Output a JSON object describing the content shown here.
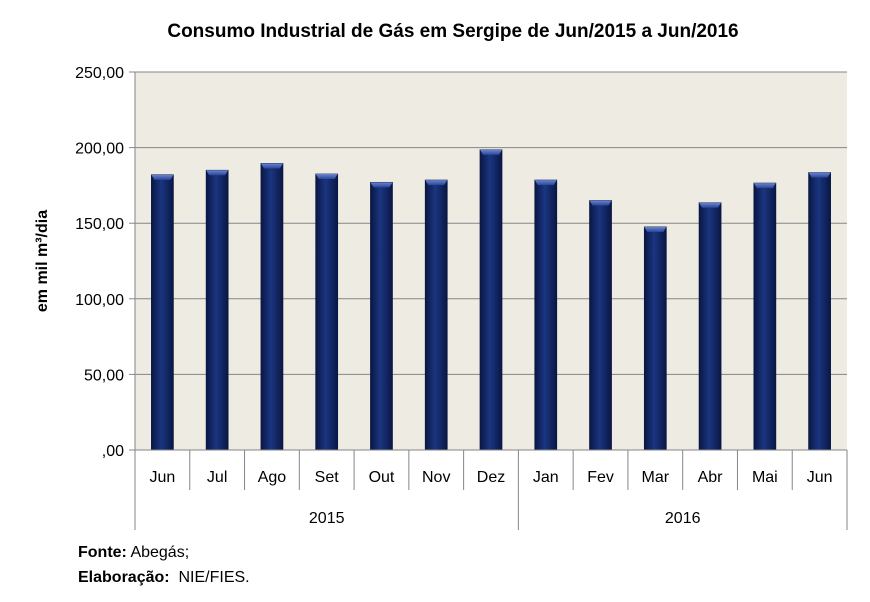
{
  "chart_data": {
    "type": "bar",
    "title": "Consumo  Industrial de Gás em Sergipe de Jun/2015 a Jun/2016",
    "ylabel": "em mil m³/dia",
    "xlabel": "",
    "ylim": [
      0,
      250
    ],
    "yticks": [
      0,
      50,
      100,
      150,
      200,
      250
    ],
    "ytick_labels": [
      ",00",
      "50,00",
      "100,00",
      "150,00",
      "200,00",
      "250,00"
    ],
    "categories": [
      "Jun",
      "Jul",
      "Ago",
      "Set",
      "Out",
      "Nov",
      "Dez",
      "Jan",
      "Fev",
      "Mar",
      "Abr",
      "Mai",
      "Jun"
    ],
    "values": [
      182,
      185,
      189.5,
      182.5,
      177,
      178.5,
      198.5,
      178.5,
      165,
      147.5,
      163.5,
      176.5,
      183.5
    ],
    "groups": [
      {
        "label": "2015",
        "count": 7
      },
      {
        "label": "2016",
        "count": 6
      }
    ],
    "grid": true,
    "legend": "none",
    "colors": {
      "bar": "#13286a",
      "bar_dark": "#0a1744",
      "bar_light": "#4a68b8",
      "plot_bg": "#eeebe3",
      "grid": "#868686",
      "axis": "#868686"
    }
  },
  "footer": {
    "source_label": "Fonte:",
    "source_value": " Abegás;",
    "elab_label": "Elaboração:",
    "elab_value": "  NIE/FIES."
  }
}
